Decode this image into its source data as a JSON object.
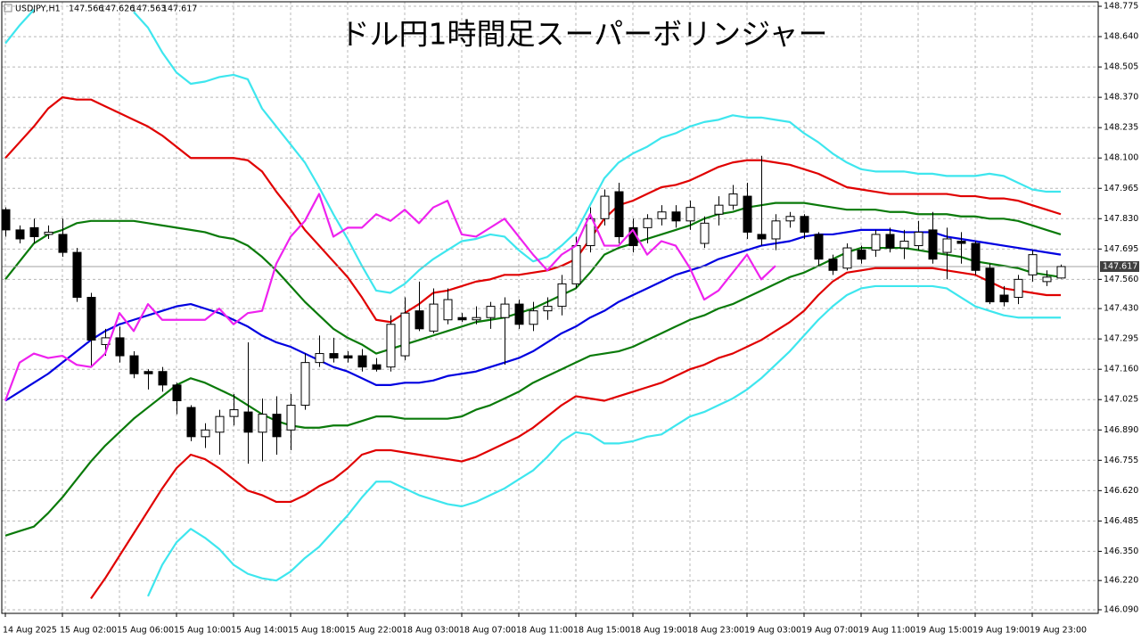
{
  "chart_data": {
    "type": "candlestick",
    "title": "ドル円1時間足スーパーボリンジャー",
    "symbol": "USDJPY,H1",
    "categories": [
      "14 Aug 2025",
      null,
      null,
      null,
      "15 Aug 02:00",
      null,
      null,
      null,
      "15 Aug 06:00",
      null,
      null,
      null,
      "15 Aug 10:00",
      null,
      null,
      null,
      "15 Aug 14:00",
      null,
      null,
      null,
      "15 Aug 18:00",
      null,
      null,
      null,
      "15 Aug 22:00",
      null,
      null,
      null,
      "18 Aug 03:00",
      null,
      null,
      null,
      "18 Aug 07:00",
      null,
      null,
      null,
      "18 Aug 11:00",
      null,
      null,
      null,
      "18 Aug 15:00",
      null,
      null,
      null,
      "18 Aug 19:00",
      null,
      null,
      null,
      "18 Aug 23:00",
      null,
      null,
      null,
      "19 Aug 03:00",
      null,
      null,
      null,
      "19 Aug 07:00",
      null,
      null,
      null,
      "19 Aug 11:00",
      null,
      null,
      null,
      "19 Aug 15:00",
      null,
      null,
      null,
      "19 Aug 19:00",
      null,
      null,
      null,
      "19 Aug 23:00",
      null,
      null
    ],
    "open": [
      147.87,
      147.78,
      147.79,
      147.76,
      147.76,
      147.68,
      147.48,
      147.27,
      147.3,
      147.22,
      147.15,
      147.15,
      147.09,
      146.99,
      146.86,
      146.88,
      146.95,
      146.97,
      146.88,
      146.96,
      146.89,
      147.0,
      147.19,
      147.23,
      147.22,
      147.22,
      147.18,
      147.17,
      147.22,
      147.42,
      147.33,
      147.38,
      147.39,
      147.38,
      147.39,
      147.39,
      147.45,
      147.36,
      147.42,
      147.44,
      147.54,
      147.71,
      147.83,
      147.95,
      147.79,
      147.79,
      147.83,
      147.86,
      147.82,
      147.72,
      147.85,
      147.89,
      147.93,
      147.76,
      147.74,
      147.82,
      147.84,
      147.76,
      147.65,
      147.61,
      147.69,
      147.69,
      147.76,
      147.7,
      147.71,
      147.78,
      147.68,
      147.73,
      147.72,
      147.61,
      147.49,
      147.48,
      147.58,
      147.55,
      147.566
    ],
    "high": [
      147.88,
      147.8,
      147.83,
      147.8,
      147.83,
      147.7,
      147.5,
      147.34,
      147.35,
      147.24,
      147.16,
      147.17,
      147.1,
      147.0,
      146.92,
      146.98,
      147.05,
      147.28,
      147.03,
      147.04,
      147.05,
      147.23,
      147.31,
      147.3,
      147.24,
      147.25,
      147.21,
      147.4,
      147.48,
      147.55,
      147.52,
      147.52,
      147.41,
      147.44,
      147.46,
      147.48,
      147.47,
      147.46,
      147.48,
      147.58,
      147.75,
      147.88,
      147.96,
      147.99,
      147.83,
      147.85,
      147.89,
      147.89,
      147.91,
      147.84,
      147.93,
      147.98,
      147.99,
      148.11,
      147.85,
      147.86,
      147.85,
      147.77,
      147.67,
      147.72,
      147.71,
      147.78,
      147.79,
      147.78,
      147.82,
      147.86,
      147.79,
      147.77,
      147.73,
      147.63,
      147.53,
      147.58,
      147.69,
      147.6,
      147.626
    ],
    "low": [
      147.75,
      147.72,
      147.72,
      147.74,
      147.66,
      147.46,
      147.17,
      147.22,
      147.19,
      147.12,
      147.07,
      147.06,
      146.96,
      146.84,
      146.81,
      146.78,
      146.91,
      146.74,
      146.75,
      146.78,
      146.8,
      146.98,
      147.17,
      147.19,
      147.19,
      147.15,
      147.15,
      147.15,
      147.2,
      147.33,
      147.32,
      147.36,
      147.37,
      147.36,
      147.34,
      147.18,
      147.34,
      147.33,
      147.38,
      147.4,
      147.52,
      147.68,
      147.8,
      147.72,
      147.68,
      147.72,
      147.8,
      147.79,
      147.78,
      147.7,
      147.8,
      147.87,
      147.74,
      147.71,
      147.69,
      147.79,
      147.74,
      147.62,
      147.58,
      147.6,
      147.63,
      147.66,
      147.68,
      147.65,
      147.69,
      147.63,
      147.56,
      147.63,
      147.58,
      147.45,
      147.44,
      147.45,
      147.55,
      147.53,
      147.563
    ],
    "close": [
      147.78,
      147.74,
      147.75,
      147.77,
      147.68,
      147.48,
      147.29,
      147.3,
      147.22,
      147.14,
      147.14,
      147.09,
      147.02,
      146.86,
      146.89,
      146.95,
      146.98,
      146.88,
      146.96,
      146.86,
      147.0,
      147.19,
      147.23,
      147.21,
      147.21,
      147.17,
      147.16,
      147.36,
      147.41,
      147.34,
      147.45,
      147.47,
      147.38,
      147.39,
      147.44,
      147.45,
      147.36,
      147.42,
      147.44,
      147.54,
      147.71,
      147.83,
      147.93,
      147.75,
      147.71,
      147.83,
      147.86,
      147.82,
      147.88,
      147.81,
      147.89,
      147.94,
      147.77,
      147.74,
      147.82,
      147.84,
      147.77,
      147.65,
      147.6,
      147.7,
      147.65,
      147.76,
      147.7,
      147.73,
      147.77,
      147.65,
      147.74,
      147.72,
      147.6,
      147.46,
      147.46,
      147.56,
      147.67,
      147.57,
      147.617
    ],
    "up_color": "#ffffff",
    "down_color": "#000000",
    "series": [
      {
        "color": "#3ee6ee",
        "values": [
          148.61,
          148.69,
          148.76,
          null,
          null,
          null,
          null,
          null,
          null,
          148.75,
          148.68,
          148.57,
          148.48,
          148.43,
          148.44,
          148.46,
          148.47,
          148.45,
          148.32,
          148.24,
          148.16,
          148.08,
          147.97,
          147.85,
          147.74,
          147.62,
          147.51,
          147.5,
          147.54,
          147.6,
          147.65,
          147.69,
          147.73,
          147.74,
          147.76,
          147.75,
          147.69,
          147.64,
          147.66,
          147.71,
          147.77,
          147.89,
          148.01,
          148.08,
          148.12,
          148.15,
          148.19,
          148.21,
          148.24,
          148.26,
          148.27,
          148.29,
          148.28,
          148.28,
          148.27,
          148.26,
          148.21,
          148.17,
          148.12,
          148.08,
          148.05,
          148.04,
          148.04,
          148.04,
          148.03,
          148.03,
          148.02,
          148.02,
          148.02,
          148.03,
          148.02,
          147.99,
          147.96,
          147.95,
          147.95
        ]
      },
      {
        "color": "#3ee6ee",
        "values": [
          null,
          null,
          null,
          null,
          null,
          null,
          null,
          null,
          null,
          null,
          146.15,
          146.29,
          146.39,
          146.45,
          146.41,
          146.36,
          146.29,
          146.25,
          146.23,
          146.22,
          146.26,
          146.32,
          146.37,
          146.44,
          146.51,
          146.59,
          146.66,
          146.66,
          146.63,
          146.6,
          146.58,
          146.56,
          146.55,
          146.57,
          146.6,
          146.63,
          146.67,
          146.71,
          146.77,
          146.84,
          146.88,
          146.87,
          146.83,
          146.83,
          146.84,
          146.86,
          146.87,
          146.91,
          146.95,
          146.97,
          147.0,
          147.03,
          147.07,
          147.12,
          147.18,
          147.24,
          147.31,
          147.38,
          147.44,
          147.49,
          147.52,
          147.53,
          147.53,
          147.53,
          147.53,
          147.53,
          147.52,
          147.48,
          147.44,
          147.42,
          147.4,
          147.39,
          147.39,
          147.39,
          147.39
        ]
      },
      {
        "color": "#e00000",
        "values": [
          148.1,
          148.17,
          148.24,
          148.32,
          148.37,
          148.36,
          148.36,
          148.33,
          148.3,
          148.27,
          148.24,
          148.2,
          148.15,
          148.1,
          148.1,
          148.1,
          148.1,
          148.09,
          148.04,
          147.95,
          147.87,
          147.78,
          147.71,
          147.64,
          147.57,
          147.48,
          147.38,
          147.37,
          147.41,
          147.45,
          147.5,
          147.51,
          147.53,
          147.55,
          147.56,
          147.58,
          147.58,
          147.59,
          147.6,
          147.62,
          147.65,
          147.74,
          147.83,
          147.89,
          147.91,
          147.94,
          147.97,
          147.98,
          148.0,
          148.03,
          148.06,
          148.08,
          148.09,
          148.09,
          148.08,
          148.07,
          148.05,
          148.03,
          148.0,
          147.97,
          147.96,
          147.95,
          147.94,
          147.94,
          147.94,
          147.94,
          147.94,
          147.93,
          147.93,
          147.92,
          147.92,
          147.91,
          147.89,
          147.87,
          147.85
        ]
      },
      {
        "color": "#e00000",
        "values": [
          null,
          null,
          null,
          null,
          null,
          null,
          146.14,
          146.23,
          146.33,
          146.43,
          146.53,
          146.63,
          146.72,
          146.78,
          146.76,
          146.72,
          146.67,
          146.62,
          146.6,
          146.57,
          146.57,
          146.6,
          146.64,
          146.67,
          146.72,
          146.78,
          146.8,
          146.8,
          146.79,
          146.78,
          146.77,
          146.76,
          146.75,
          146.77,
          146.8,
          146.83,
          146.86,
          146.9,
          146.95,
          147.0,
          147.04,
          147.03,
          147.02,
          147.04,
          147.06,
          147.08,
          147.1,
          147.13,
          147.16,
          147.18,
          147.21,
          147.23,
          147.26,
          147.29,
          147.33,
          147.37,
          147.42,
          147.49,
          147.55,
          147.59,
          147.6,
          147.61,
          147.61,
          147.61,
          147.61,
          147.61,
          147.6,
          147.59,
          147.58,
          147.55,
          147.52,
          147.51,
          147.5,
          147.49,
          147.49
        ]
      },
      {
        "color": "#0a7a0a",
        "values": [
          147.56,
          147.64,
          147.72,
          147.76,
          147.78,
          147.81,
          147.82,
          147.82,
          147.82,
          147.82,
          147.81,
          147.8,
          147.79,
          147.78,
          147.77,
          147.75,
          147.74,
          147.71,
          147.66,
          147.6,
          147.53,
          147.46,
          147.4,
          147.34,
          147.3,
          147.27,
          147.23,
          147.25,
          147.27,
          147.29,
          147.31,
          147.33,
          147.35,
          147.37,
          147.38,
          147.39,
          147.41,
          147.43,
          147.46,
          147.49,
          147.52,
          147.59,
          147.67,
          147.7,
          147.72,
          147.74,
          147.76,
          147.78,
          147.8,
          147.83,
          147.85,
          147.86,
          147.88,
          147.89,
          147.9,
          147.9,
          147.9,
          147.89,
          147.88,
          147.87,
          147.87,
          147.87,
          147.86,
          147.86,
          147.85,
          147.85,
          147.85,
          147.84,
          147.84,
          147.83,
          147.83,
          147.82,
          147.8,
          147.78,
          147.76
        ]
      },
      {
        "color": "#0a7a0a",
        "values": [
          146.42,
          146.44,
          146.46,
          146.52,
          146.59,
          146.67,
          146.75,
          146.82,
          146.88,
          146.94,
          146.99,
          147.04,
          147.09,
          147.12,
          147.1,
          147.07,
          147.04,
          147.0,
          146.96,
          146.93,
          146.91,
          146.9,
          146.9,
          146.91,
          146.91,
          146.93,
          146.95,
          146.95,
          146.94,
          146.94,
          146.94,
          146.94,
          146.95,
          146.98,
          147.0,
          147.03,
          147.06,
          147.1,
          147.13,
          147.16,
          147.19,
          147.22,
          147.23,
          147.24,
          147.26,
          147.29,
          147.32,
          147.35,
          147.38,
          147.4,
          147.43,
          147.45,
          147.48,
          147.51,
          147.54,
          147.57,
          147.59,
          147.62,
          147.65,
          147.68,
          147.7,
          147.7,
          147.7,
          147.7,
          147.69,
          147.68,
          147.67,
          147.66,
          147.64,
          147.63,
          147.62,
          147.61,
          147.59,
          147.58,
          147.57
        ]
      },
      {
        "color": "#0000e0",
        "values": [
          147.02,
          147.06,
          147.1,
          147.14,
          147.19,
          147.24,
          147.29,
          147.33,
          147.36,
          147.38,
          147.4,
          147.42,
          147.44,
          147.45,
          147.43,
          147.41,
          147.38,
          147.35,
          147.31,
          147.28,
          147.26,
          147.23,
          147.2,
          147.17,
          147.15,
          147.12,
          147.09,
          147.09,
          147.1,
          147.1,
          147.11,
          147.13,
          147.14,
          147.15,
          147.17,
          147.19,
          147.21,
          147.24,
          147.28,
          147.32,
          147.35,
          147.39,
          147.42,
          147.46,
          147.49,
          147.52,
          147.55,
          147.58,
          147.6,
          147.62,
          147.65,
          147.67,
          147.69,
          147.71,
          147.72,
          147.73,
          147.75,
          147.76,
          147.76,
          147.77,
          147.78,
          147.78,
          147.78,
          147.77,
          147.77,
          147.77,
          147.75,
          147.74,
          147.73,
          147.72,
          147.71,
          147.7,
          147.69,
          147.68,
          147.67
        ]
      },
      {
        "color": "#ee22ee",
        "values": [
          147.02,
          147.19,
          147.23,
          147.21,
          147.22,
          147.18,
          147.17,
          147.23,
          147.41,
          147.33,
          147.45,
          147.38,
          147.38,
          147.38,
          147.38,
          147.43,
          147.36,
          147.41,
          147.42,
          147.63,
          147.75,
          147.82,
          147.94,
          147.75,
          147.79,
          147.79,
          147.85,
          147.82,
          147.87,
          147.81,
          147.88,
          147.91,
          147.76,
          147.75,
          147.79,
          147.83,
          147.75,
          147.67,
          147.6,
          147.67,
          147.71,
          147.85,
          147.71,
          147.71,
          147.78,
          147.67,
          147.73,
          147.71,
          147.61,
          147.47,
          147.51,
          147.59,
          147.67,
          147.56,
          147.62,
          null,
          null,
          null,
          null,
          null,
          null,
          null,
          null,
          null,
          null,
          null,
          null,
          null,
          null,
          null,
          null,
          null,
          null,
          null,
          null
        ]
      }
    ],
    "ylim": [
      146.074,
      148.795
    ],
    "yticks": [
      148.775,
      {
        "value": 148.64,
        "label": "148.640"
      },
      148.505,
      {
        "value": 148.37,
        "label": "148.370"
      },
      148.235,
      {
        "value": 148.1,
        "label": "148.100"
      },
      147.965,
      {
        "value": 147.83,
        "label": "147.830"
      },
      147.695,
      {
        "value": 147.56,
        "label": "147.560"
      },
      {
        "value": 147.43,
        "label": "147.430"
      },
      147.295,
      {
        "value": 147.16,
        "label": "147.160"
      },
      147.025,
      {
        "value": 146.89,
        "label": "146.890"
      },
      146.755,
      {
        "value": 146.62,
        "label": "146.620"
      },
      146.485,
      {
        "value": 146.35,
        "label": "146.350"
      },
      {
        "value": 146.22,
        "label": "146.220"
      },
      {
        "value": 146.09,
        "label": "146.090"
      }
    ],
    "grid": true
  }
}
